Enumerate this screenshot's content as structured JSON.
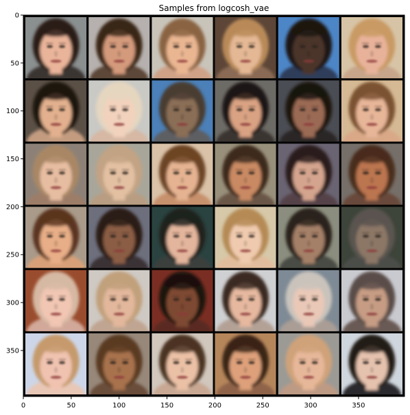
{
  "figure": {
    "title": "Samples from logcosh_vae"
  },
  "image_grid": {
    "rows": 6,
    "cols": 6,
    "background": "#050505",
    "tiles": [
      {
        "skin": "#e9b49a",
        "hair": "#2a1c16",
        "bg": "#8a8f90",
        "shirt": "#3b3630"
      },
      {
        "skin": "#d49a7c",
        "hair": "#3a2618",
        "bg": "#b6b1ae",
        "shirt": "#5b4637"
      },
      {
        "skin": "#eab692",
        "hair": "#8a6442",
        "bg": "#c9c4ba",
        "shirt": "#cfa187"
      },
      {
        "skin": "#e4b894",
        "hair": "#b98a58",
        "bg": "#5d4637",
        "shirt": "#8a6a55"
      },
      {
        "skin": "#4b3429",
        "hair": "#1d1712",
        "bg": "#4d86c7",
        "shirt": "#2e3d5a"
      },
      {
        "skin": "#e8b29a",
        "hair": "#c99a63",
        "bg": "#d7c4a6",
        "shirt": "#c7a58a"
      },
      {
        "skin": "#e2b08e",
        "hair": "#1f1510",
        "bg": "#5b5046",
        "shirt": "#c39c80"
      },
      {
        "skin": "#f2d2bd",
        "hair": "#e5d6c0",
        "bg": "#c9c9c5",
        "shirt": "#d6b8a4"
      },
      {
        "skin": "#8b6e56",
        "hair": "#4a3c31",
        "bg": "#4b80b8",
        "shirt": "#5d5f63"
      },
      {
        "skin": "#d9a283",
        "hair": "#1f1714",
        "bg": "#6d6b66",
        "shirt": "#3b3430"
      },
      {
        "skin": "#9b6a54",
        "hair": "#1a1411",
        "bg": "#4b4d54",
        "shirt": "#2a2626"
      },
      {
        "skin": "#e7b598",
        "hair": "#7b5232",
        "bg": "#d5b994",
        "shirt": "#d9a887"
      },
      {
        "skin": "#e7bda1",
        "hair": "#a98765",
        "bg": "#8d8177",
        "shirt": "#9e7d68"
      },
      {
        "skin": "#e3c0a2",
        "hair": "#c2a384",
        "bg": "#a8a69a",
        "shirt": "#b89d82"
      },
      {
        "skin": "#e5b391",
        "hair": "#6d4425",
        "bg": "#d9c2a8",
        "shirt": "#c8916d"
      },
      {
        "skin": "#c98a64",
        "hair": "#3e2c1f",
        "bg": "#99907b",
        "shirt": "#6b5747"
      },
      {
        "skin": "#d4a48e",
        "hair": "#2c1f1c",
        "bg": "#6a6472",
        "shirt": "#54434a"
      },
      {
        "skin": "#bb7550",
        "hair": "#4a2d1f",
        "bg": "#766f69",
        "shirt": "#69493a"
      },
      {
        "skin": "#e7ae87",
        "hair": "#5b3520",
        "bg": "#a99a8a",
        "shirt": "#d8a078"
      },
      {
        "skin": "#8b5d45",
        "hair": "#2a1e18",
        "bg": "#6d6f7d",
        "shirt": "#3a3335"
      },
      {
        "skin": "#e3b59c",
        "hair": "#20211f",
        "bg": "#2a4340",
        "shirt": "#3a3f3c"
      },
      {
        "skin": "#efcaae",
        "hair": "#b58a55",
        "bg": "#d6c8a8",
        "shirt": "#e2bd9d"
      },
      {
        "skin": "#a58068",
        "hair": "#2c231d",
        "bg": "#8b8e7e",
        "shirt": "#4a4c45"
      },
      {
        "skin": "#8c7766",
        "hair": "#5a5450",
        "bg": "#3d4439",
        "shirt": "#4b4d4a"
      },
      {
        "skin": "#f1c6b3",
        "hair": "#d6b8a3",
        "bg": "#9a4c2e",
        "shirt": "#d1a899"
      },
      {
        "skin": "#e2b79b",
        "hair": "#c1a07b",
        "bg": "#cfc9c3",
        "shirt": "#c0a592"
      },
      {
        "skin": "#7e4a32",
        "hair": "#1c120d",
        "bg": "#7a2e23",
        "shirt": "#5a2c23"
      },
      {
        "skin": "#e5b89f",
        "hair": "#3b2a23",
        "bg": "#cfd0d2",
        "shirt": "#b3a196"
      },
      {
        "skin": "#e9c8b7",
        "hair": "#c9c3bc",
        "bg": "#7e8a95",
        "shirt": "#a99d95"
      },
      {
        "skin": "#c69c84",
        "hair": "#5a4e49",
        "bg": "#c9cad0",
        "shirt": "#6a5a55"
      },
      {
        "skin": "#f0c3b1",
        "hair": "#c59a6c",
        "bg": "#cdd6e8",
        "shirt": "#e8c7b6"
      },
      {
        "skin": "#a8724e",
        "hair": "#5a3b22",
        "bg": "#97887a",
        "shirt": "#6a4e3a"
      },
      {
        "skin": "#ebc1a6",
        "hair": "#4b3424",
        "bg": "#d1c7bd",
        "shirt": "#c8a893"
      },
      {
        "skin": "#dda07a",
        "hair": "#3b2517",
        "bg": "#b6865b",
        "shirt": "#8f6448"
      },
      {
        "skin": "#e7b79a",
        "hair": "#cfa279",
        "bg": "#9c9a95",
        "shirt": "#bd9a84"
      },
      {
        "skin": "#e5c2ae",
        "hair": "#231c19",
        "bg": "#cfd6dd",
        "shirt": "#2b2a2d"
      }
    ]
  },
  "axes": {
    "x_ticks": [
      "0",
      "50",
      "100",
      "150",
      "200",
      "250",
      "300",
      "350"
    ],
    "y_ticks": [
      "0",
      "50",
      "100",
      "150",
      "200",
      "250",
      "300",
      "350"
    ],
    "x_tick_values": [
      0,
      50,
      100,
      150,
      200,
      250,
      300,
      350
    ],
    "y_tick_values": [
      0,
      50,
      100,
      150,
      200,
      250,
      300,
      350
    ],
    "x_range": [
      0,
      398
    ],
    "y_range": [
      0,
      398
    ]
  }
}
